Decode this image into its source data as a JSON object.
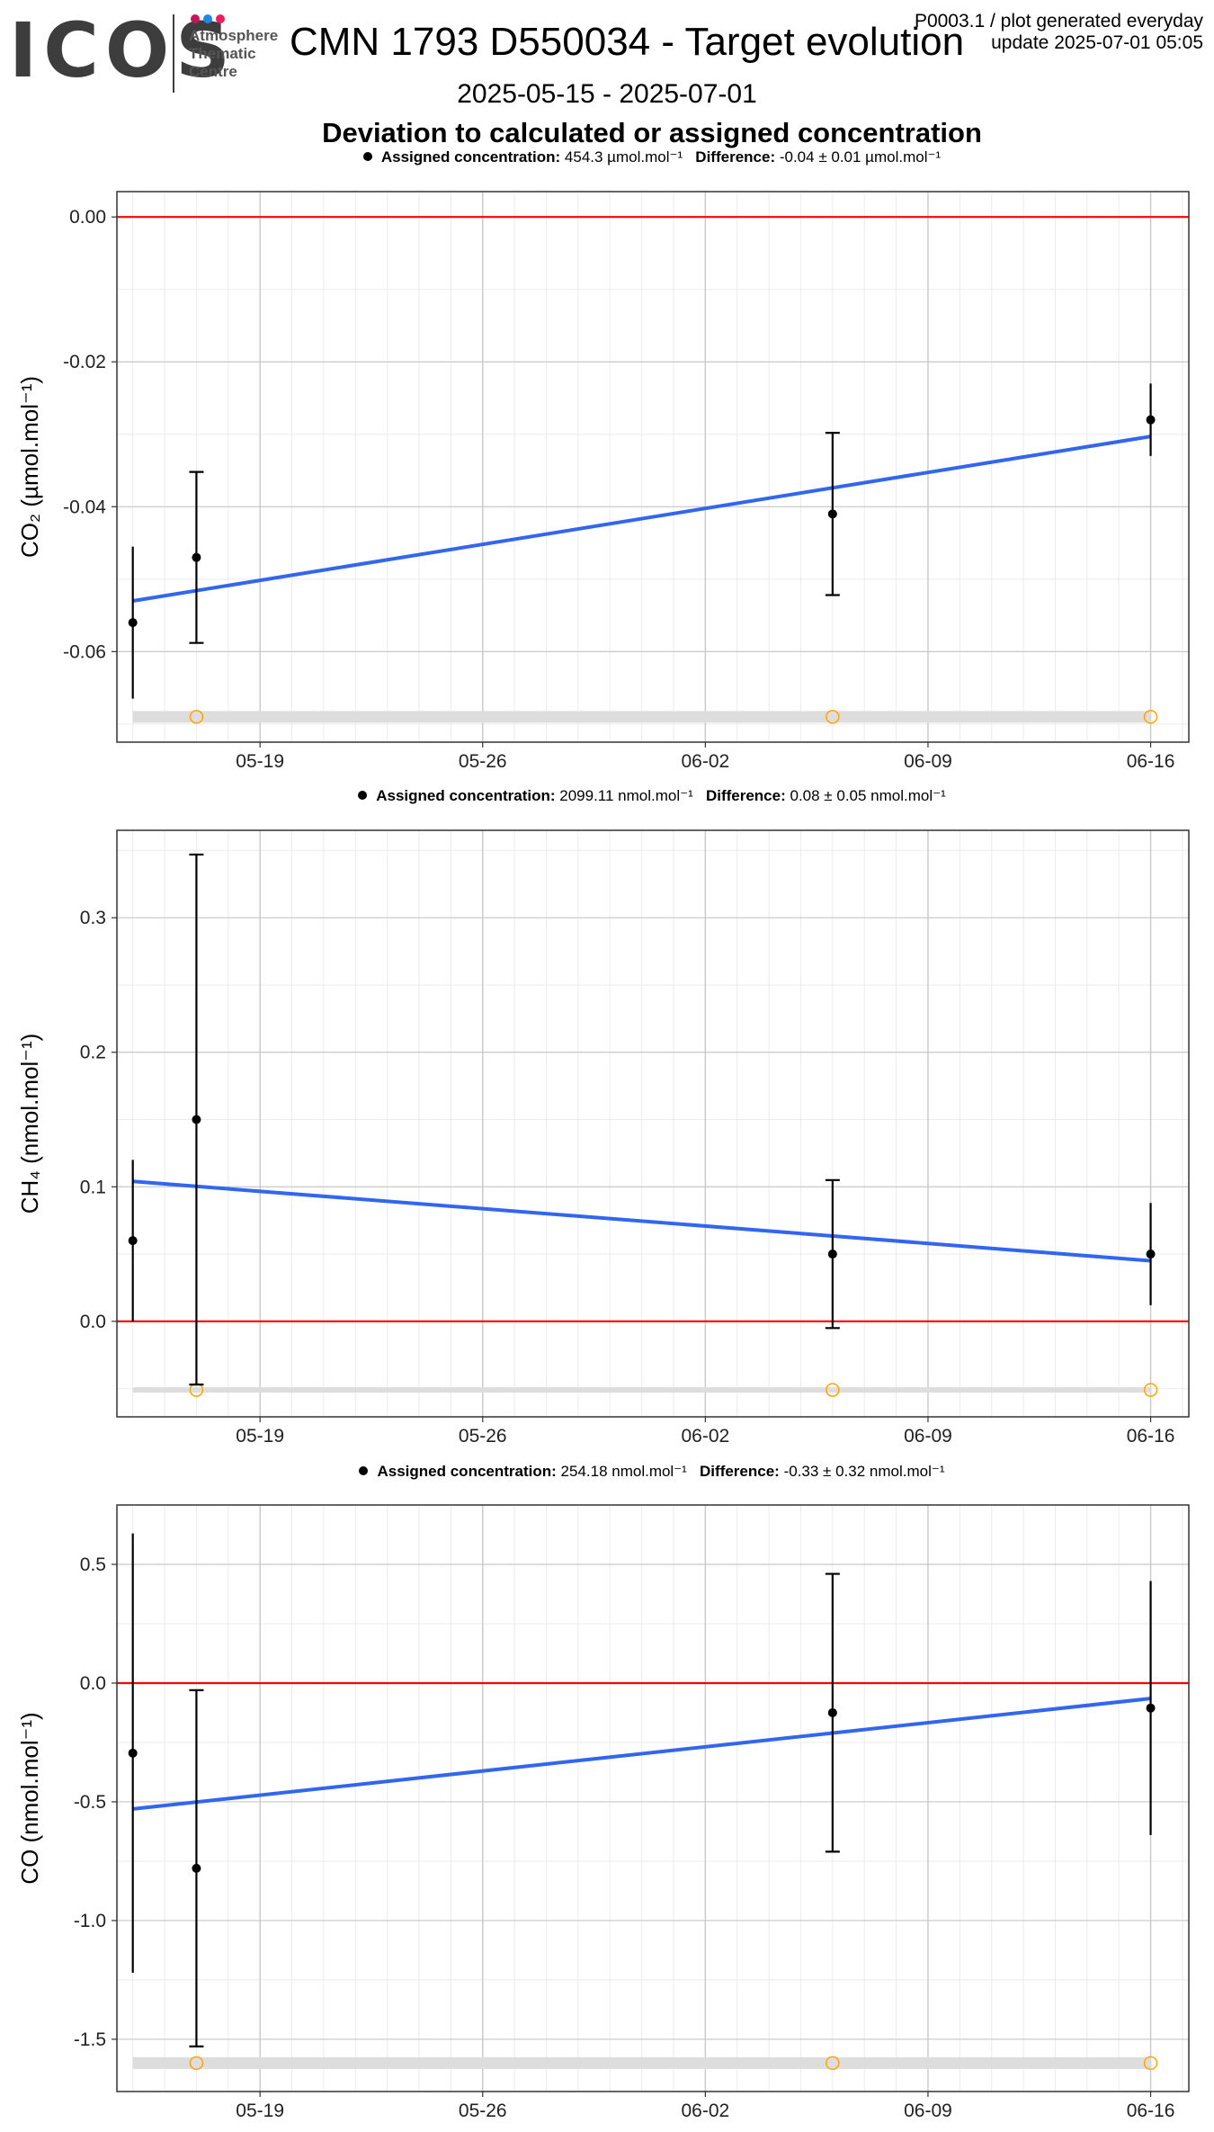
{
  "header": {
    "logo_text": "ICOS",
    "logo_subtitle": [
      "Atmosphere",
      "Thematic",
      "Centre"
    ],
    "logo_dot_colors": [
      "#c2185b",
      "#1e88e5",
      "#e91e63"
    ],
    "title": "CMN 1793 D550034 - Target evolution",
    "date_range": "2025-05-15 - 2025-07-01",
    "meta_line1": "P0003.1 / plot generated everyday",
    "meta_line2": "update  2025-07-01 05:05",
    "plot_title": "Deviation to calculated or assigned concentration"
  },
  "colors": {
    "reference_line": "#ff0000",
    "trend_line": "#3366ee",
    "points": "#000000",
    "flag_markers": "#ffa500",
    "flag_band": "#dddddd",
    "grid_major": "#c8c8c8",
    "grid_minor": "#ebebeb"
  },
  "chart_data": [
    {
      "type": "scatter",
      "gas": "CO2",
      "legend": {
        "label": "Assigned concentration:",
        "value": "454.3 µmol.mol⁻¹",
        "diff_label": "Difference:",
        "diff_value": "-0.04 ± 0.01 µmol.mol⁻¹"
      },
      "ylabel": "CO₂ (µmol.mol⁻¹)",
      "x_ticks": [
        "05-19",
        "05-26",
        "06-02",
        "06-09",
        "06-16"
      ],
      "x_range": [
        "2025-05-15",
        "2025-06-17"
      ],
      "ylim": [
        -0.0725,
        0.0035
      ],
      "y_ticks": [
        "0.00",
        "-0.02",
        "-0.04",
        "-0.06"
      ],
      "y_tick_values": [
        0.0,
        -0.02,
        -0.04,
        -0.06
      ],
      "reference_value": 0.0,
      "points": [
        {
          "x": "2025-05-15",
          "y": -0.056,
          "err": 0.0105
        },
        {
          "x": "2025-05-17",
          "y": -0.047,
          "err": 0.0118
        },
        {
          "x": "2025-06-06",
          "y": -0.041,
          "err": 0.0112
        },
        {
          "x": "2025-06-16",
          "y": -0.028,
          "err": 0.005
        }
      ],
      "trend": [
        {
          "x": "2025-05-15",
          "y": -0.053
        },
        {
          "x": "2025-06-16",
          "y": -0.0303
        }
      ],
      "flag_points": [
        "2025-05-17",
        "2025-06-06",
        "2025-06-16"
      ],
      "flag_y": -0.069
    },
    {
      "type": "scatter",
      "gas": "CH4",
      "legend": {
        "label": "Assigned concentration:",
        "value": "2099.11 nmol.mol⁻¹",
        "diff_label": "Difference:",
        "diff_value": "0.08 ± 0.05 nmol.mol⁻¹"
      },
      "ylabel": "CH₄ (nmol.mol⁻¹)",
      "x_ticks": [
        "05-19",
        "05-26",
        "06-02",
        "06-09",
        "06-16"
      ],
      "x_range": [
        "2025-05-15",
        "2025-06-17"
      ],
      "ylim": [
        -0.071,
        0.365
      ],
      "y_ticks": [
        "0.3",
        "0.2",
        "0.1",
        "0.0"
      ],
      "y_tick_values": [
        0.3,
        0.2,
        0.1,
        0.0
      ],
      "reference_value": 0.0,
      "points": [
        {
          "x": "2025-05-15",
          "y": 0.06,
          "err": 0.06
        },
        {
          "x": "2025-05-17",
          "y": 0.15,
          "err": 0.197
        },
        {
          "x": "2025-06-06",
          "y": 0.05,
          "err": 0.055
        },
        {
          "x": "2025-06-16",
          "y": 0.05,
          "err": 0.038
        }
      ],
      "trend": [
        {
          "x": "2025-05-15",
          "y": 0.104
        },
        {
          "x": "2025-06-16",
          "y": 0.045
        }
      ],
      "flag_points": [
        "2025-05-17",
        "2025-06-06",
        "2025-06-16"
      ],
      "flag_y": -0.051
    },
    {
      "type": "scatter",
      "gas": "CO",
      "legend": {
        "label": "Assigned concentration:",
        "value": "254.18 nmol.mol⁻¹",
        "diff_label": "Difference:",
        "diff_value": "-0.33 ± 0.32 nmol.mol⁻¹"
      },
      "ylabel": "CO (nmol.mol⁻¹)",
      "x_ticks": [
        "05-19",
        "05-26",
        "06-02",
        "06-09",
        "06-16"
      ],
      "x_range": [
        "2025-05-15",
        "2025-06-17"
      ],
      "ylim": [
        -1.72,
        0.75
      ],
      "y_ticks": [
        "0.5",
        "0.0",
        "-0.5",
        "-1.0",
        "-1.5"
      ],
      "y_tick_values": [
        0.5,
        0.0,
        -0.5,
        -1.0,
        -1.5
      ],
      "reference_value": 0.0,
      "points": [
        {
          "x": "2025-05-15",
          "y": -0.295,
          "err": 0.925
        },
        {
          "x": "2025-05-17",
          "y": -0.78,
          "err": 0.75
        },
        {
          "x": "2025-06-06",
          "y": -0.125,
          "err": 0.585
        },
        {
          "x": "2025-06-16",
          "y": -0.105,
          "err": 0.535
        }
      ],
      "trend": [
        {
          "x": "2025-05-15",
          "y": -0.53
        },
        {
          "x": "2025-06-16",
          "y": -0.065
        }
      ],
      "flag_points": [
        "2025-05-17",
        "2025-06-06",
        "2025-06-16"
      ],
      "flag_y": -1.6
    }
  ]
}
